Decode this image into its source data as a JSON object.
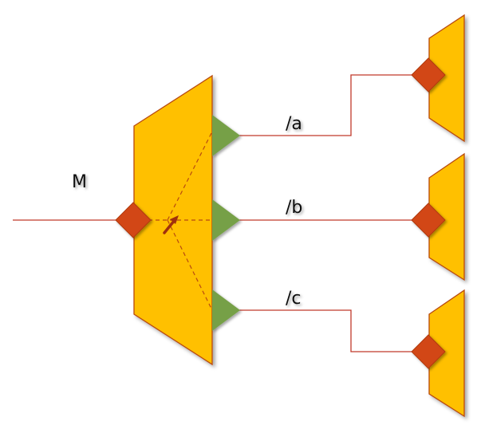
{
  "diagram": {
    "input_label": "M",
    "output_labels": [
      "/a",
      "/b",
      "/c"
    ]
  },
  "colors": {
    "block_fill": "#FFC000",
    "block_stroke": "#B84A10",
    "port_diamond": "#D24715",
    "port_triangle": "#76A046",
    "wire": "#C0392B",
    "dashed": "#B84A10",
    "arrow": "#A0300D",
    "background": "#FFFFFF"
  }
}
